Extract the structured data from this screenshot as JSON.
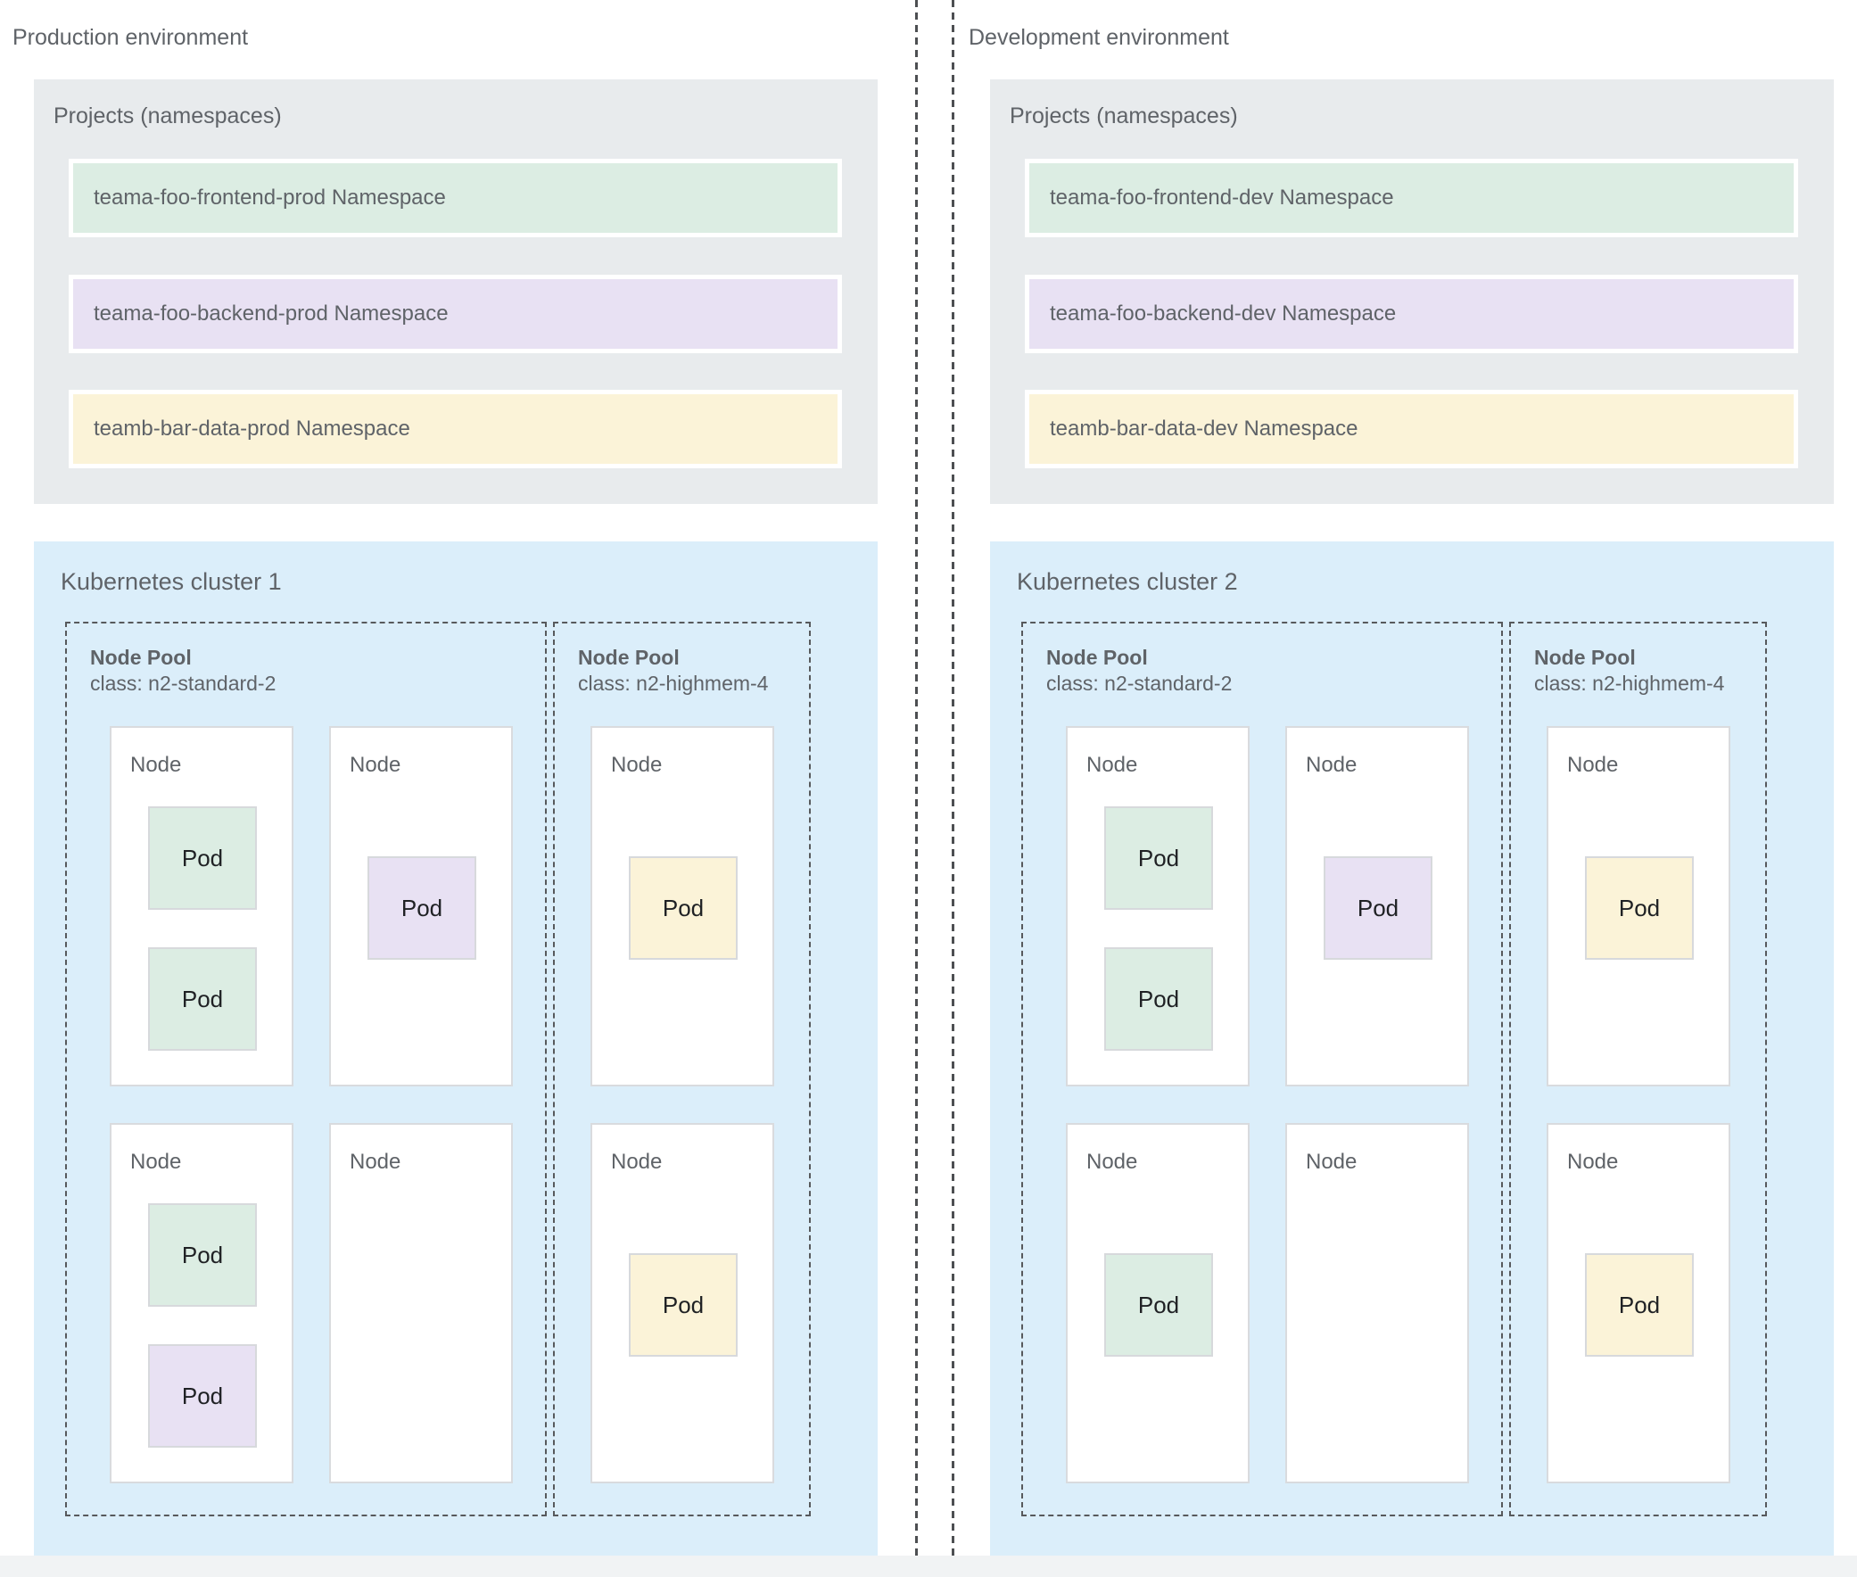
{
  "colors": {
    "green": "#dcede3",
    "purple": "#e8e1f3",
    "yellow": "#fbf3d8"
  },
  "ui": {
    "projects_box_fill": "#e8ebed",
    "cluster_box_fill": "#dbeefa",
    "bottom_strip_fill": "#f1f3f4",
    "label_color": "#5f6368",
    "pod_text_color": "#1f2124",
    "dashed_border_color": "#57595c"
  },
  "environments": [
    {
      "title": "Production environment",
      "projects": {
        "title": "Projects (namespaces)",
        "namespaces": [
          {
            "label": "teama-foo-frontend-prod Namespace",
            "color": "green"
          },
          {
            "label": "teama-foo-backend-prod Namespace",
            "color": "purple"
          },
          {
            "label": "teamb-bar-data-prod Namespace",
            "color": "yellow"
          }
        ]
      },
      "cluster": {
        "title": "Kubernetes cluster 1",
        "pools": [
          {
            "name": "Node Pool",
            "class_line": "class: n2-standard-2",
            "nodes": [
              {
                "label": "Node",
                "pods": [
                  {
                    "label": "Pod",
                    "color": "green"
                  },
                  {
                    "label": "Pod",
                    "color": "green"
                  }
                ]
              },
              {
                "label": "Node",
                "pods": [
                  {
                    "label": "Pod",
                    "color": "purple"
                  }
                ]
              },
              {
                "label": "Node",
                "pods": [
                  {
                    "label": "Pod",
                    "color": "green"
                  },
                  {
                    "label": "Pod",
                    "color": "purple"
                  }
                ]
              },
              {
                "label": "Node",
                "pods": []
              }
            ]
          },
          {
            "name": "Node Pool",
            "class_line": "class: n2-highmem-4",
            "nodes": [
              {
                "label": "Node",
                "pods": [
                  {
                    "label": "Pod",
                    "color": "yellow"
                  }
                ]
              },
              {
                "label": "Node",
                "pods": [
                  {
                    "label": "Pod",
                    "color": "yellow"
                  }
                ]
              }
            ]
          }
        ]
      }
    },
    {
      "title": "Development environment",
      "projects": {
        "title": "Projects (namespaces)",
        "namespaces": [
          {
            "label": "teama-foo-frontend-dev Namespace",
            "color": "green"
          },
          {
            "label": "teama-foo-backend-dev Namespace",
            "color": "purple"
          },
          {
            "label": "teamb-bar-data-dev Namespace",
            "color": "yellow"
          }
        ]
      },
      "cluster": {
        "title": "Kubernetes cluster 2",
        "pools": [
          {
            "name": "Node Pool",
            "class_line": "class: n2-standard-2",
            "nodes": [
              {
                "label": "Node",
                "pods": [
                  {
                    "label": "Pod",
                    "color": "green"
                  },
                  {
                    "label": "Pod",
                    "color": "green"
                  }
                ]
              },
              {
                "label": "Node",
                "pods": [
                  {
                    "label": "Pod",
                    "color": "purple"
                  }
                ]
              },
              {
                "label": "Node",
                "pods": [
                  {
                    "label": "Pod",
                    "color": "green"
                  }
                ]
              },
              {
                "label": "Node",
                "pods": []
              }
            ]
          },
          {
            "name": "Node Pool",
            "class_line": "class: n2-highmem-4",
            "nodes": [
              {
                "label": "Node",
                "pods": [
                  {
                    "label": "Pod",
                    "color": "yellow"
                  }
                ]
              },
              {
                "label": "Node",
                "pods": [
                  {
                    "label": "Pod",
                    "color": "yellow"
                  }
                ]
              }
            ]
          }
        ]
      }
    }
  ]
}
